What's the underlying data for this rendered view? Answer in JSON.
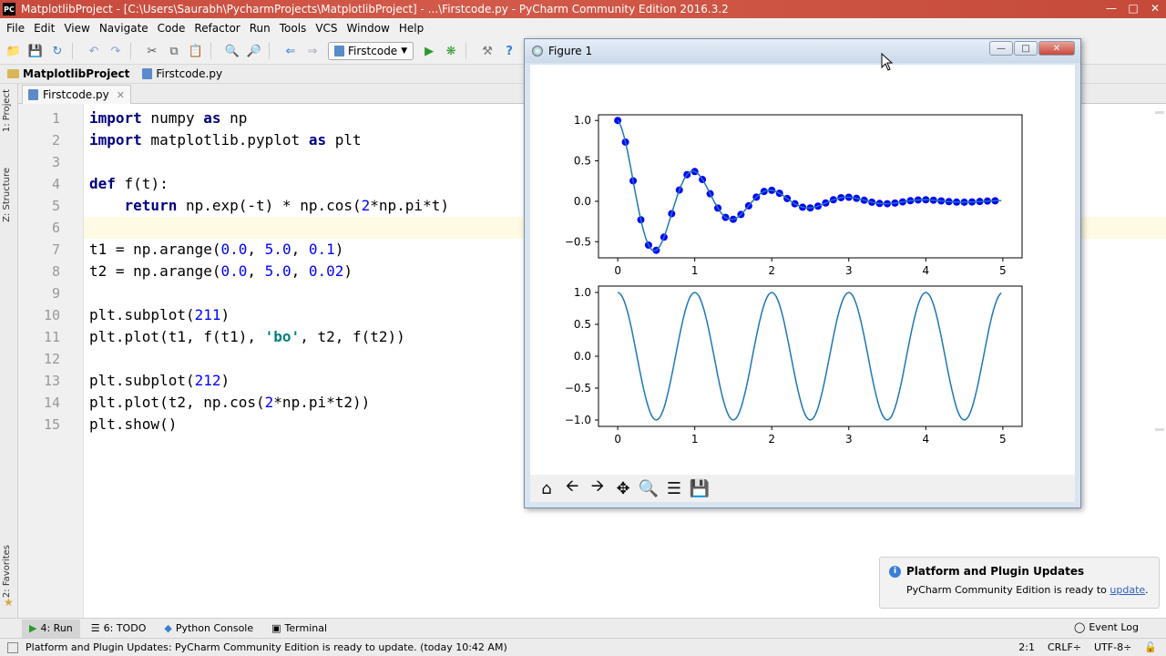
{
  "window": {
    "title": "MatplotlibProject - [C:\\Users\\Saurabh\\PycharmProjects\\MatplotlibProject] - ...\\Firstcode.py - PyCharm Community Edition 2016.3.2"
  },
  "menu": [
    "File",
    "Edit",
    "View",
    "Navigate",
    "Code",
    "Refactor",
    "Run",
    "Tools",
    "VCS",
    "Window",
    "Help"
  ],
  "toolbar": {
    "run_config": "Firstcode"
  },
  "breadcrumb": {
    "project": "MatplotlibProject",
    "file": "Firstcode.py"
  },
  "left_tabs": {
    "project": "1: Project",
    "structure": "Z: Structure",
    "favorites": "2: Favorites"
  },
  "editor": {
    "tab_label": "Firstcode.py",
    "line_numbers": [
      "1",
      "2",
      "3",
      "4",
      "5",
      "6",
      "7",
      "8",
      "9",
      "10",
      "11",
      "12",
      "13",
      "14",
      "15"
    ]
  },
  "figure": {
    "title": "Figure 1",
    "chart_data": [
      {
        "type": "line",
        "series": [
          {
            "marker": "o",
            "color": "#0000ff",
            "function": "exp(-t)*cos(2*pi*t)",
            "t_range": [
              0.0,
              5.0
            ],
            "t_step": 0.1
          },
          {
            "color": "#1f77b4",
            "function": "exp(-t)*cos(2*pi*t)",
            "t_range": [
              0.0,
              5.0
            ],
            "t_step": 0.02
          }
        ],
        "xticks": [
          "0",
          "1",
          "2",
          "3",
          "4",
          "5"
        ],
        "yticks": [
          "1.0",
          "0.5",
          "0.0",
          "−0.5"
        ],
        "xlim": [
          -0.25,
          5.25
        ],
        "ylim": [
          -0.7,
          1.07
        ]
      },
      {
        "type": "line",
        "series": [
          {
            "color": "#1f77b4",
            "function": "cos(2*pi*t)",
            "t_range": [
              0.0,
              5.0
            ],
            "t_step": 0.02
          }
        ],
        "xticks": [
          "0",
          "1",
          "2",
          "3",
          "4",
          "5"
        ],
        "yticks": [
          "1.0",
          "0.5",
          "0.0",
          "−0.5",
          "−1.0"
        ],
        "xlim": [
          -0.25,
          5.25
        ],
        "ylim": [
          -1.1,
          1.1
        ]
      }
    ]
  },
  "notification": {
    "title": "Platform and Plugin Updates",
    "body": "PyCharm Community Edition is ready to",
    "link": "update"
  },
  "bottom_tabs": {
    "run": "4: Run",
    "todo": "6: TODO",
    "console": "Python Console",
    "terminal": "Terminal",
    "event_log": "Event Log"
  },
  "status": {
    "message": "Platform and Plugin Updates: PyCharm Community Edition is ready to update. (today 10:42 AM)",
    "position": "2:1",
    "line_sep": "CRLF÷",
    "encoding": "UTF-8÷"
  }
}
